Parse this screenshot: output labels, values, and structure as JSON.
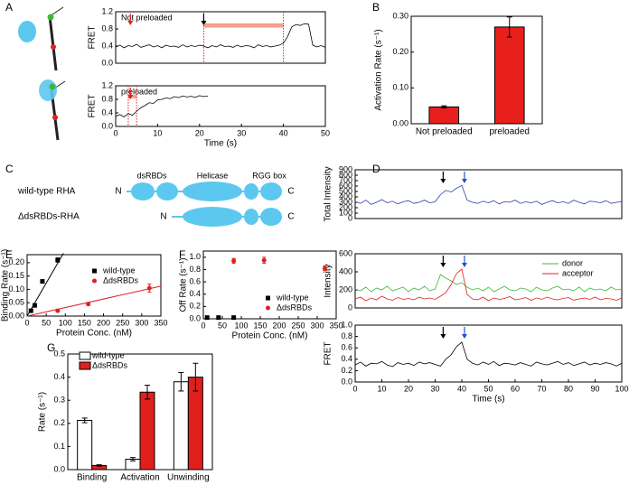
{
  "panel_labels": [
    "A",
    "B",
    "C",
    "D",
    "E",
    "F",
    "G"
  ],
  "diagram": {
    "rows": [
      {
        "name": "wild-type RHA",
        "n": "N",
        "c": "C"
      },
      {
        "name": "ΔdsRBDs-RHA",
        "n": "N",
        "c": "C"
      }
    ],
    "domains": [
      "dsRBDs",
      "Helicase",
      "RGG box"
    ]
  },
  "chart_data": [
    {
      "type": "line",
      "annotation": "Not preloaded",
      "ylabel": "FRET",
      "xlim": [
        0,
        50
      ],
      "ylim": [
        0,
        1.2
      ],
      "yticks": [
        {
          "value": 0,
          "label": "0.0"
        },
        0.4,
        0.8,
        1.2
      ],
      "interval": [
        21,
        40
      ],
      "arrows": [
        {
          "x": 3.5,
          "color": "#e02020"
        },
        {
          "x": 21,
          "color": "#000000"
        }
      ],
      "x": [
        0,
        1,
        2,
        3,
        4,
        5,
        6,
        7,
        8,
        9,
        10,
        11,
        12,
        13,
        14,
        15,
        16,
        17,
        18,
        19,
        20,
        21,
        22,
        23,
        24,
        25,
        26,
        27,
        28,
        29,
        30,
        31,
        32,
        33,
        34,
        35,
        36,
        37,
        38,
        39,
        40,
        41,
        42,
        43,
        44,
        45,
        46,
        47,
        48,
        49,
        50
      ],
      "series": [
        {
          "color": "#000000",
          "values": [
            0.38,
            0.42,
            0.36,
            0.41,
            0.39,
            0.44,
            0.37,
            0.4,
            0.43,
            0.38,
            0.41,
            0.36,
            0.42,
            0.39,
            0.4,
            0.37,
            0.43,
            0.38,
            0.41,
            0.39,
            0.42,
            0.4,
            0.36,
            0.41,
            0.38,
            0.43,
            0.39,
            0.4,
            0.37,
            0.42,
            0.38,
            0.41,
            0.4,
            0.36,
            0.43,
            0.39,
            0.41,
            0.38,
            0.4,
            0.42,
            0.47,
            0.62,
            0.85,
            0.9,
            0.88,
            0.92,
            0.91,
            0.42,
            0.38,
            0.41,
            0.37
          ]
        }
      ]
    },
    {
      "type": "line",
      "annotation": "preloaded",
      "ylabel": "FRET",
      "xlabel": "Time (s)",
      "xlim": [
        0,
        50
      ],
      "ylim": [
        0,
        1.2
      ],
      "xticks": [
        0,
        10,
        20,
        30,
        40,
        50
      ],
      "yticks": [
        {
          "value": 0,
          "label": "0.0"
        },
        0.4,
        0.8,
        1.2
      ],
      "interval": [
        3,
        5
      ],
      "arrows": [
        {
          "x": 3.5,
          "color": "#e02020"
        }
      ],
      "x": [
        0,
        1,
        2,
        3,
        4,
        5,
        6,
        7,
        8,
        9,
        10,
        11,
        12,
        13,
        14,
        15,
        16,
        17,
        18,
        19,
        20,
        21,
        22
      ],
      "series": [
        {
          "color": "#000000",
          "values": [
            0.3,
            0.35,
            0.28,
            0.38,
            0.33,
            0.45,
            0.55,
            0.62,
            0.7,
            0.68,
            0.78,
            0.8,
            0.84,
            0.82,
            0.88,
            0.85,
            0.9,
            0.87,
            0.89,
            0.86,
            0.91,
            0.88,
            0.9
          ]
        }
      ]
    },
    {
      "type": "bar",
      "ylabel": "Activation Rate (s⁻¹)",
      "ylim": [
        0,
        0.3
      ],
      "yticks": [
        {
          "value": 0,
          "label": "0.00"
        },
        {
          "value": 0.1,
          "label": "0.10"
        },
        {
          "value": 0.2,
          "label": "0.20"
        },
        {
          "value": 0.3,
          "label": "0.30"
        }
      ],
      "categories": [
        "Not preloaded",
        "preloaded"
      ],
      "series": [
        {
          "color": "#e8201c",
          "values": [
            0.047,
            0.27
          ],
          "errors": [
            0.003,
            0.028
          ]
        }
      ]
    },
    {
      "type": "line",
      "ylabel": "Total Intensity",
      "xlim": [
        0,
        100
      ],
      "ylim": [
        0,
        900
      ],
      "yticks": [
        0,
        100,
        200,
        300,
        400,
        500,
        600,
        700,
        800,
        900
      ],
      "arrows": [
        {
          "x": 33,
          "color": "#000000"
        },
        {
          "x": 41,
          "color": "#2255cc"
        }
      ],
      "x": [
        0,
        2,
        4,
        6,
        8,
        10,
        12,
        14,
        16,
        18,
        20,
        22,
        24,
        26,
        28,
        30,
        32,
        34,
        36,
        38,
        40,
        42,
        44,
        46,
        48,
        50,
        52,
        54,
        56,
        58,
        60,
        62,
        64,
        66,
        68,
        70,
        72,
        74,
        76,
        78,
        80,
        82,
        84,
        86,
        88,
        90,
        92,
        94,
        96,
        98,
        100
      ],
      "series": [
        {
          "color": "#2b3fa0",
          "values": [
            310,
            280,
            340,
            260,
            300,
            350,
            290,
            320,
            270,
            310,
            330,
            280,
            300,
            340,
            290,
            310,
            440,
            520,
            490,
            560,
            610,
            340,
            300,
            280,
            320,
            290,
            330,
            270,
            310,
            300,
            340,
            280,
            310,
            290,
            320,
            260,
            300,
            330,
            290,
            310,
            280,
            340,
            300,
            270,
            320,
            310,
            290,
            330,
            280,
            300,
            310
          ]
        }
      ]
    },
    {
      "type": "line",
      "ylabel": "Intensity",
      "xlim": [
        0,
        100
      ],
      "ylim": [
        0,
        600
      ],
      "yticks": [
        0,
        200,
        400,
        600
      ],
      "arrows": [
        {
          "x": 33,
          "color": "#000000"
        },
        {
          "x": 41,
          "color": "#2255cc"
        }
      ],
      "x": [
        0,
        2,
        4,
        6,
        8,
        10,
        12,
        14,
        16,
        18,
        20,
        22,
        24,
        26,
        28,
        30,
        32,
        34,
        36,
        38,
        40,
        42,
        44,
        46,
        48,
        50,
        52,
        54,
        56,
        58,
        60,
        62,
        64,
        66,
        68,
        70,
        72,
        74,
        76,
        78,
        80,
        82,
        84,
        86,
        88,
        90,
        92,
        94,
        96,
        98,
        100
      ],
      "series": [
        {
          "name": "donor",
          "color": "#3cb83c",
          "values": [
            210,
            190,
            230,
            180,
            220,
            200,
            240,
            190,
            210,
            230,
            180,
            220,
            200,
            240,
            190,
            210,
            370,
            330,
            300,
            260,
            280,
            230,
            200,
            220,
            190,
            230,
            180,
            210,
            240,
            200,
            190,
            220,
            210,
            180,
            230,
            200,
            190,
            220,
            240,
            200,
            210,
            190,
            230,
            180,
            220,
            200,
            210,
            190,
            230,
            200,
            210
          ]
        },
        {
          "name": "acceptor",
          "color": "#e02020",
          "values": [
            100,
            120,
            80,
            110,
            90,
            130,
            100,
            85,
            115,
            95,
            105,
            90,
            120,
            100,
            110,
            95,
            130,
            170,
            260,
            380,
            430,
            150,
            100,
            90,
            120,
            80,
            110,
            95,
            105,
            125,
            90,
            100,
            115,
            85,
            110,
            95,
            120,
            100,
            90,
            105,
            115,
            85,
            100,
            110,
            95,
            120,
            90,
            105,
            100,
            85,
            110
          ]
        }
      ]
    },
    {
      "type": "line",
      "ylabel": "FRET",
      "xlabel": "Time (s)",
      "xlim": [
        0,
        100
      ],
      "ylim": [
        0,
        1
      ],
      "xticks": [
        0,
        10,
        20,
        30,
        40,
        50,
        60,
        70,
        80,
        90,
        100
      ],
      "yticks": [
        {
          "value": 0,
          "label": "0.0"
        },
        0.2,
        0.4,
        0.6,
        0.8,
        {
          "value": 1,
          "label": "1.0"
        }
      ],
      "arrows": [
        {
          "x": 33,
          "color": "#000000"
        },
        {
          "x": 41,
          "color": "#2255cc"
        }
      ],
      "x": [
        0,
        2,
        4,
        6,
        8,
        10,
        12,
        14,
        16,
        18,
        20,
        22,
        24,
        26,
        28,
        30,
        32,
        34,
        36,
        38,
        40,
        42,
        44,
        46,
        48,
        50,
        52,
        54,
        56,
        58,
        60,
        62,
        64,
        66,
        68,
        70,
        72,
        74,
        76,
        78,
        80,
        82,
        84,
        86,
        88,
        90,
        92,
        94,
        96,
        98,
        100
      ],
      "series": [
        {
          "color": "#000000",
          "values": [
            0.3,
            0.35,
            0.28,
            0.33,
            0.32,
            0.36,
            0.3,
            0.27,
            0.34,
            0.31,
            0.33,
            0.29,
            0.35,
            0.32,
            0.34,
            0.31,
            0.28,
            0.4,
            0.48,
            0.62,
            0.7,
            0.4,
            0.33,
            0.3,
            0.35,
            0.31,
            0.36,
            0.29,
            0.33,
            0.32,
            0.3,
            0.34,
            0.31,
            0.28,
            0.35,
            0.32,
            0.3,
            0.33,
            0.36,
            0.31,
            0.34,
            0.29,
            0.32,
            0.35,
            0.3,
            0.33,
            0.31,
            0.34,
            0.32,
            0.28,
            0.33
          ]
        }
      ]
    },
    {
      "type": "scatter",
      "ylabel": "Binding Rate (s⁻¹)",
      "xlabel": "Protein Conc. (nM)",
      "xlim": [
        0,
        350
      ],
      "ylim": [
        0,
        0.23
      ],
      "xticks": [
        0,
        50,
        100,
        150,
        200,
        250,
        300,
        350
      ],
      "yticks": [
        {
          "value": 0,
          "label": "0.00"
        },
        0.05,
        {
          "value": 0.1,
          "label": "0.10"
        },
        0.15,
        {
          "value": 0.2,
          "label": "0.20"
        }
      ],
      "series": [
        {
          "name": "wild-type",
          "color": "#000000",
          "marker": "square",
          "x": [
            10,
            20,
            40,
            80
          ],
          "values": [
            0.02,
            0.04,
            0.13,
            0.21
          ],
          "errors": [
            0.003,
            0.004,
            0.004,
            0.008
          ]
        },
        {
          "name": "ΔdsRBDs",
          "color": "#e02020",
          "marker": "circle",
          "x": [
            80,
            160,
            320
          ],
          "values": [
            0.02,
            0.045,
            0.105
          ],
          "errors": [
            0.002,
            0.004,
            0.015
          ]
        }
      ],
      "fits": [
        {
          "color": "#000000",
          "x": [
            0,
            95
          ],
          "values": [
            0,
            0.235
          ]
        },
        {
          "color": "#e02020",
          "x": [
            0,
            350
          ],
          "values": [
            0,
            0.112
          ]
        }
      ]
    },
    {
      "type": "scatter",
      "ylabel": "Off Rate (s⁻¹)",
      "xlabel": "Protein Conc. (nM)",
      "xlim": [
        0,
        350
      ],
      "ylim": [
        0,
        1.1
      ],
      "xticks": [
        0,
        50,
        100,
        150,
        200,
        250,
        300,
        350
      ],
      "yticks": [
        {
          "value": 0,
          "label": "0.0"
        },
        0.2,
        0.4,
        0.6,
        0.8,
        {
          "value": 1,
          "label": "1.0"
        }
      ],
      "series": [
        {
          "name": "wild-type",
          "color": "#000000",
          "marker": "square",
          "x": [
            10,
            40,
            80
          ],
          "values": [
            0.02,
            0.02,
            0.02
          ]
        },
        {
          "name": "ΔdsRBDs",
          "color": "#e02020",
          "marker": "circle",
          "x": [
            80,
            160,
            320
          ],
          "values": [
            0.94,
            0.95,
            0.82
          ],
          "errors": [
            0.04,
            0.05,
            0.04
          ]
        }
      ]
    },
    {
      "type": "bar",
      "ylabel": "Rate (s⁻¹)",
      "ylim": [
        0,
        0.5
      ],
      "yticks": [
        {
          "value": 0,
          "label": "0.0"
        },
        0.1,
        0.2,
        0.3,
        0.4,
        0.5
      ],
      "categories": [
        "Binding",
        "Activation",
        "Unwinding"
      ],
      "series": [
        {
          "name": "wild-type",
          "color": "#ffffff",
          "values": [
            0.213,
            0.045,
            0.38
          ],
          "errors": [
            0.01,
            0.007,
            0.04
          ]
        },
        {
          "name": "ΔdsRBDs",
          "color": "#e0201c",
          "values": [
            0.018,
            0.335,
            0.4
          ],
          "errors": [
            0.003,
            0.03,
            0.06
          ]
        }
      ]
    }
  ]
}
